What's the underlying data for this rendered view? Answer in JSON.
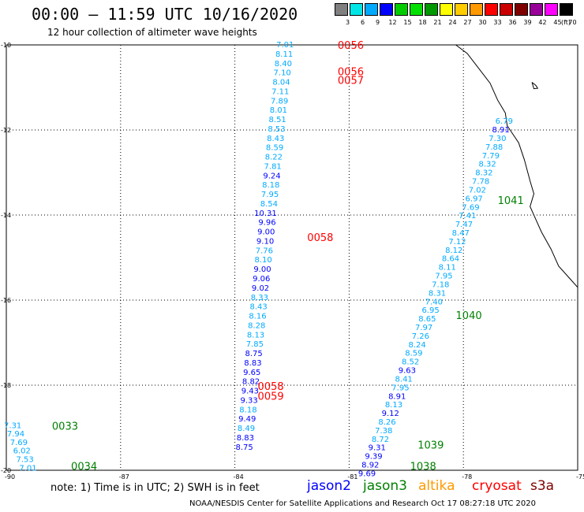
{
  "header": {
    "title": "00:00 – 11:59 UTC 10/16/2020",
    "subtitle": "12 hour collection of altimeter wave heights"
  },
  "colorbar": {
    "labels": [
      "3",
      "6",
      "9",
      "12",
      "15",
      "18",
      "21",
      "24",
      "27",
      "30",
      "33",
      "36",
      "39",
      "42",
      "45",
      "70"
    ],
    "unit": "(ft)",
    "colors": [
      "#808080",
      "#00e5e5",
      "#00aaff",
      "#0000ff",
      "#00cc00",
      "#00e000",
      "#009900",
      "#ffff00",
      "#ffcc00",
      "#ff9900",
      "#ff0000",
      "#cc0000",
      "#800000",
      "#990099",
      "#ff00ff",
      "#000000"
    ]
  },
  "legend": {
    "note": "note: 1) Time is in UTC; 2) SWH is in feet",
    "satellites": [
      {
        "name": "jason2",
        "color": "#0000ff"
      },
      {
        "name": "jason3",
        "color": "#008000"
      },
      {
        "name": "altika",
        "color": "#ff9900"
      },
      {
        "name": "cryosat",
        "color": "#ff0000"
      },
      {
        "name": "s3a",
        "color": "#800000"
      }
    ]
  },
  "footer": {
    "credit": "NOAA/NESDIS Center for Satellite Applications and Research    Oct 17 08:27:18 UTC 2020"
  },
  "chart_data": {
    "type": "scatter",
    "xlim": [
      -90,
      -75
    ],
    "ylim": [
      -20,
      -10
    ],
    "x_ticks": [
      "-90",
      "-87",
      "-84",
      "-81",
      "-78",
      "-75"
    ],
    "y_ticks": [
      "-10",
      "-12",
      "-14",
      "-16",
      "-18",
      "-20"
    ],
    "grid": true,
    "colors": {
      "swh_low": "#00aaff",
      "swh_high": "#0000ff",
      "jason3_label": "#008000",
      "cryosat_label": "#ff0000"
    },
    "track_left": {
      "x_top": -82.45,
      "x_bottom": -83.52,
      "y_top": -10.0,
      "y_step": 0.22,
      "swh": [
        "7.01",
        "8.11",
        "8.40",
        "7.10",
        "8.04",
        "7.11",
        "7.89",
        "8.01",
        "8.51",
        "8.53",
        "8.43",
        "8.59",
        "8.22",
        "7.81",
        "9.24",
        "8.18",
        "7.95",
        "8.54",
        "10.31",
        "9.96",
        "9.00",
        "9.10",
        "7.76",
        "8.10",
        "9.00",
        "9.06",
        "9.02",
        "8.33",
        "8.43",
        "8.16",
        "8.28",
        "8.13",
        "7.85",
        "8.75",
        "8.83",
        "9.65",
        "8.82",
        "9.43",
        "9.33",
        "8.18",
        "9.49",
        "8.49",
        "8.83",
        "8.75"
      ]
    },
    "track_right": {
      "x_top": -76.7,
      "x_bottom": -80.3,
      "y_top": -11.8,
      "y_step": 0.202,
      "swh": [
        "6.79",
        "8.91",
        "7.30",
        "7.88",
        "7.79",
        "8.32",
        "8.32",
        "7.78",
        "7.02",
        "6.97",
        "7.69",
        "7.41",
        "7.47",
        "8.47",
        "7.12",
        "8.12",
        "8.64",
        "8.11",
        "7.95",
        "7.18",
        "8.31",
        "7.40",
        "6.95",
        "8.65",
        "7.97",
        "7.26",
        "8.24",
        "8.59",
        "8.52",
        "9.63",
        "8.41",
        "7.95",
        "8.91",
        "8.13",
        "9.12",
        "8.26",
        "7.38",
        "8.72",
        "9.31",
        "9.39",
        "8.92",
        "9.69"
      ]
    },
    "track_small": {
      "x_top": -89.6,
      "x_bottom": -89.2,
      "y_top": -18.95,
      "y_step": 0.2,
      "swh": [
        "7.31",
        "7.94",
        "7.69",
        "6.02",
        "7.53",
        "7.01"
      ]
    },
    "time_labels": [
      {
        "text": "0056",
        "x": -81.3,
        "y": -10.0,
        "sat": "cryosat"
      },
      {
        "text": "0056",
        "x": -81.3,
        "y": -10.62,
        "sat": "cryosat"
      },
      {
        "text": "0057",
        "x": -81.3,
        "y": -10.82,
        "sat": "cryosat"
      },
      {
        "text": "0058",
        "x": -82.1,
        "y": -14.52,
        "sat": "cryosat"
      },
      {
        "text": "0058",
        "x": -83.4,
        "y": -18.02,
        "sat": "cryosat"
      },
      {
        "text": "0059",
        "x": -83.4,
        "y": -18.25,
        "sat": "cryosat"
      },
      {
        "text": "1041",
        "x": -77.1,
        "y": -13.65,
        "sat": "jason3"
      },
      {
        "text": "1040",
        "x": -78.2,
        "y": -16.35,
        "sat": "jason3"
      },
      {
        "text": "1039",
        "x": -79.2,
        "y": -19.4,
        "sat": "jason3"
      },
      {
        "text": "1038",
        "x": -79.4,
        "y": -19.9,
        "sat": "jason3"
      },
      {
        "text": "0033",
        "x": -88.8,
        "y": -18.95,
        "sat": "jason3"
      },
      {
        "text": "0034",
        "x": -88.3,
        "y": -19.9,
        "sat": "jason3"
      }
    ],
    "coastline": [
      [
        -78.2,
        -10.0
      ],
      [
        -77.9,
        -10.2
      ],
      [
        -77.6,
        -10.55
      ],
      [
        -77.3,
        -10.9
      ],
      [
        -77.1,
        -11.3
      ],
      [
        -76.9,
        -11.6
      ],
      [
        -76.85,
        -11.9
      ],
      [
        -76.55,
        -12.3
      ],
      [
        -76.4,
        -12.7
      ],
      [
        -76.25,
        -13.2
      ],
      [
        -76.15,
        -13.5
      ],
      [
        -76.25,
        -13.8
      ],
      [
        -76.1,
        -14.1
      ],
      [
        -75.95,
        -14.4
      ],
      [
        -75.7,
        -14.8
      ],
      [
        -75.5,
        -15.2
      ],
      [
        -75.2,
        -15.5
      ],
      [
        -75.0,
        -15.7
      ]
    ],
    "island": [
      [
        -76.2,
        -10.88
      ],
      [
        -76.1,
        -10.95
      ],
      [
        -76.05,
        -11.02
      ],
      [
        -76.15,
        -11.03
      ],
      [
        -76.2,
        -10.88
      ]
    ]
  }
}
